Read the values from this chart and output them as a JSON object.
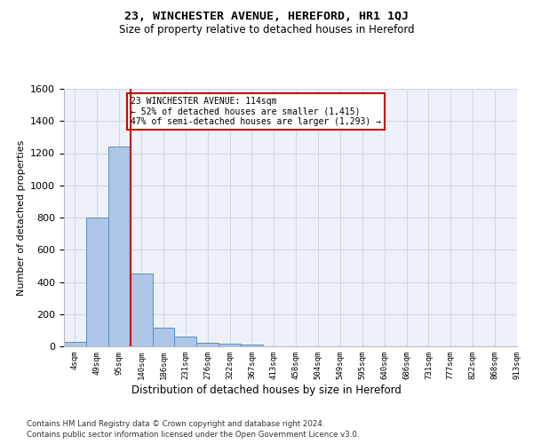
{
  "title": "23, WINCHESTER AVENUE, HEREFORD, HR1 1QJ",
  "subtitle": "Size of property relative to detached houses in Hereford",
  "xlabel": "Distribution of detached houses by size in Hereford",
  "ylabel": "Number of detached properties",
  "bar_values": [
    25,
    800,
    1240,
    455,
    115,
    58,
    22,
    18,
    12,
    0,
    0,
    0,
    0,
    0,
    0,
    0,
    0,
    0,
    0,
    0
  ],
  "bar_labels": [
    "4sqm",
    "49sqm",
    "95sqm",
    "140sqm",
    "186sqm",
    "231sqm",
    "276sqm",
    "322sqm",
    "367sqm",
    "413sqm",
    "458sqm",
    "504sqm",
    "549sqm",
    "595sqm",
    "640sqm",
    "686sqm",
    "731sqm",
    "777sqm",
    "822sqm",
    "868sqm",
    "913sqm"
  ],
  "bar_color": "#aec6e8",
  "bar_edge_color": "#5a8fc0",
  "vline_x": 3,
  "vline_color": "#cc0000",
  "ylim": [
    0,
    1600
  ],
  "yticks": [
    0,
    200,
    400,
    600,
    800,
    1000,
    1200,
    1400,
    1600
  ],
  "annotation_title": "23 WINCHESTER AVENUE: 114sqm",
  "annotation_line1": "← 52% of detached houses are smaller (1,415)",
  "annotation_line2": "47% of semi-detached houses are larger (1,293) →",
  "annotation_box_color": "#cc0000",
  "grid_color": "#d0d8e8",
  "bg_color": "#eef2f8",
  "footer1": "Contains HM Land Registry data © Crown copyright and database right 2024.",
  "footer2": "Contains public sector information licensed under the Open Government Licence v3.0."
}
